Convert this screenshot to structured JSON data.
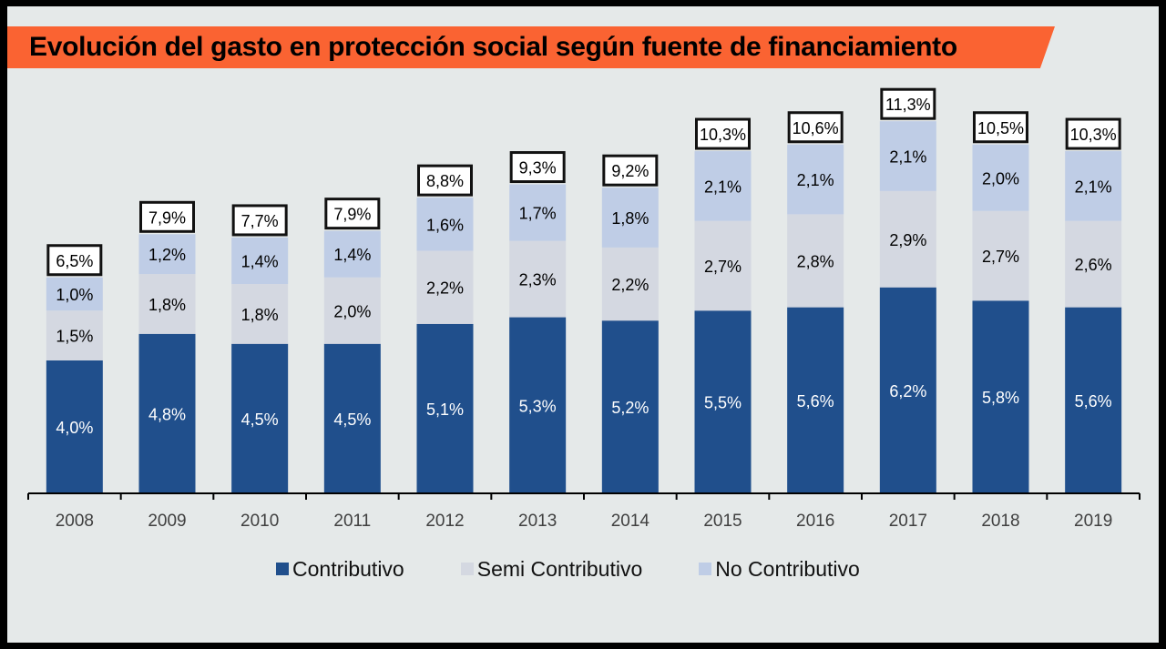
{
  "chart_data": {
    "type": "bar",
    "stacked": true,
    "title": "Evolución del gasto en protección social según fuente de financiamiento",
    "categories": [
      "2008",
      "2009",
      "2010",
      "2011",
      "2012",
      "2013",
      "2014",
      "2015",
      "2016",
      "2017",
      "2018",
      "2019"
    ],
    "series": [
      {
        "name": "Contributivo",
        "color": "#204f8c",
        "label_color": "#ffffff",
        "values": [
          4.0,
          4.8,
          4.5,
          4.5,
          5.1,
          5.3,
          5.2,
          5.5,
          5.6,
          6.2,
          5.8,
          5.6
        ],
        "labels": [
          "4,0%",
          "4,8%",
          "4,5%",
          "4,5%",
          "5,1%",
          "5,3%",
          "5,2%",
          "5,5%",
          "5,6%",
          "6,2%",
          "5,8%",
          "5,6%"
        ]
      },
      {
        "name": "Semi Contributivo",
        "color": "#d4d8e1",
        "label_color": "#000000",
        "values": [
          1.5,
          1.8,
          1.8,
          2.0,
          2.2,
          2.3,
          2.2,
          2.7,
          2.8,
          2.9,
          2.7,
          2.6
        ],
        "labels": [
          "1,5%",
          "1,8%",
          "1,8%",
          "2,0%",
          "2,2%",
          "2,3%",
          "2,2%",
          "2,7%",
          "2,8%",
          "2,9%",
          "2,7%",
          "2,6%"
        ]
      },
      {
        "name": "No Contributivo",
        "color": "#bfcde6",
        "label_color": "#000000",
        "values": [
          1.0,
          1.2,
          1.4,
          1.4,
          1.6,
          1.7,
          1.8,
          2.1,
          2.1,
          2.1,
          2.0,
          2.1
        ],
        "labels": [
          "1,0%",
          "1,2%",
          "1,4%",
          "1,4%",
          "1,6%",
          "1,7%",
          "1,8%",
          "2,1%",
          "2,1%",
          "2,1%",
          "2,0%",
          "2,1%"
        ]
      }
    ],
    "totals": [
      6.5,
      7.9,
      7.7,
      7.9,
      8.8,
      9.3,
      9.2,
      10.3,
      10.6,
      11.3,
      10.5,
      10.3
    ],
    "total_labels": [
      "6,5%",
      "7,9%",
      "7,7%",
      "7,9%",
      "8,8%",
      "9,3%",
      "9,2%",
      "10,3%",
      "10,6%",
      "11,3%",
      "10,5%",
      "10,3%"
    ],
    "ylim": [
      0,
      12
    ],
    "xlabel": "",
    "ylabel": "",
    "grid": false,
    "legend": "bottom-center"
  }
}
